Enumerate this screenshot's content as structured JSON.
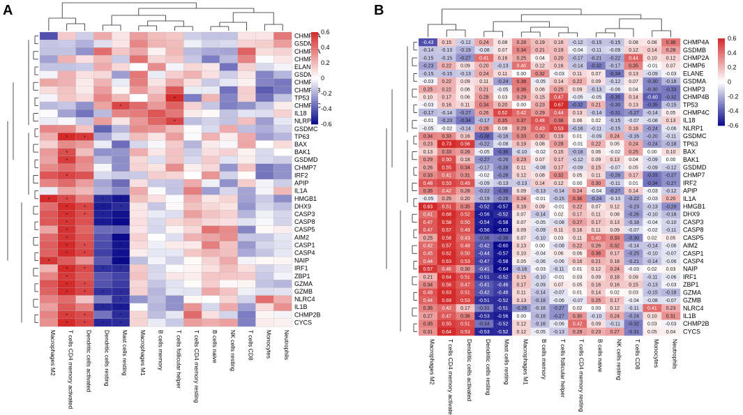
{
  "panels": [
    {
      "label": "A",
      "style": "stars"
    },
    {
      "label": "B",
      "style": "values"
    }
  ],
  "colorbar_ticks": [
    "0.6",
    "0.4",
    "0.2",
    "0",
    "-0.2",
    "-0.4",
    "-0.6"
  ],
  "colors": {
    "low": "#0a0a8c",
    "mid": "#ffffff",
    "high": "#d42a2a"
  },
  "chart_data": {
    "type": "heatmap",
    "title": "",
    "xlabel": "",
    "ylabel": "",
    "value_range": [
      -0.6,
      0.6
    ],
    "columns": [
      "Macrophages.M2",
      "T.cells.CD4.memory.activated",
      "Dendritic.cells.activated",
      "Dendritic.cells.resting",
      "Mast.cells.resting",
      "Macrophages.M1",
      "B.cells.memory",
      "T.cells.follicular.helper",
      "T.cells.CD4.memory.resting",
      "B.cells.naive",
      "NK.cells.resting",
      "T.cells.CD8",
      "Monocytes",
      "Neutrophils"
    ],
    "rows": [
      "CHMP4A",
      "GSDMB",
      "CHMP2A",
      "CHMP6",
      "ELANE",
      "GSDMA",
      "CHMP3",
      "CHMP4B",
      "TP53",
      "CHMP4C",
      "IL18",
      "NLRP1",
      "GSDMC",
      "TP63",
      "BAX",
      "BAK1",
      "GSDMD",
      "CHMP7",
      "IRF2",
      "APIP",
      "IL1A",
      "HMGB1",
      "DHX9",
      "CASP3",
      "CASP8",
      "CASP5",
      "AIM2",
      "CASP1",
      "CASP4",
      "NAIP",
      "IRF1",
      "ZBP1",
      "GZMA",
      "GZMB",
      "NLRC4",
      "IL1B",
      "CHMP2B",
      "CYCS"
    ],
    "values": [
      [
        -0.43,
        0.15,
        -0.12,
        0.24,
        0.08,
        0.28,
        0.19,
        0.16,
        -0.12,
        -0.15,
        -0.15,
        0.08,
        0.08,
        0.38
      ],
      [
        -0.14,
        -0.13,
        -0.19,
        -0.08,
        0.07,
        0.34,
        0.21,
        0.19,
        -0.04,
        -0.11,
        -0.09,
        0.12,
        0.14,
        0.28
      ],
      [
        -0.15,
        -0.15,
        -0.27,
        0.41,
        0.16,
        0.25,
        0.04,
        0.2,
        -0.17,
        -0.21,
        -0.22,
        0.44,
        0.1,
        0.12
      ],
      [
        -0.23,
        0.22,
        0.09,
        0.2,
        -0.13,
        0.4,
        0.12,
        0.16,
        -0.14,
        -0.32,
        -0.17,
        0.35,
        -0.01,
        0.07
      ],
      [
        -0.15,
        -0.15,
        -0.13,
        0.24,
        0.11,
        -0.0,
        0.32,
        -0.03,
        0.11,
        0.07,
        -0.34,
        0.13,
        -0.09,
        -0.03
      ],
      [
        -0.03,
        0.22,
        0.09,
        0.11,
        -0.24,
        0.38,
        -0.05,
        0.14,
        0.22,
        0.09,
        -0.12,
        0.07,
        -0.3,
        -0.18
      ],
      [
        0.25,
        0.22,
        0.06,
        0.21,
        -0.05,
        0.36,
        0.08,
        0.25,
        0.09,
        -0.13,
        -0.06,
        0.04,
        -0.3,
        -0.33
      ],
      [
        0.1,
        0.17,
        0.06,
        0.28,
        0.03,
        0.29,
        0.15,
        0.47,
        -0.05,
        -0.05,
        -0.35,
        0.14,
        -0.4,
        -0.32
      ],
      [
        -0.03,
        0.16,
        0.11,
        0.34,
        0.2,
        0.0,
        0.23,
        0.67,
        -0.32,
        0.21,
        -0.3,
        0.13,
        -0.35,
        -0.15
      ],
      [
        -0.17,
        -0.14,
        -0.27,
        0.26,
        0.52,
        0.42,
        0.29,
        0.44,
        0.13,
        -0.14,
        -0.31,
        -0.27,
        -0.14,
        0.05
      ],
      [
        -0.01,
        -0.23,
        -0.34,
        -0.17,
        0.35,
        0.37,
        0.48,
        0.38,
        0.06,
        0.02,
        -0.15,
        -0.07,
        -0.08,
        0.13
      ],
      [
        -0.05,
        -0.02,
        -0.14,
        0.28,
        0.08,
        0.29,
        0.43,
        0.53,
        -0.16,
        -0.11,
        -0.15,
        0.18,
        -0.24,
        -0.06
      ],
      [
        0.34,
        0.33,
        0.16,
        -0.38,
        -0.18,
        0.33,
        0.3,
        0.19,
        0.01,
        -0.09,
        0.24,
        -0.16,
        -0.2,
        -0.11
      ],
      [
        0.23,
        0.73,
        0.56,
        -0.22,
        -0.08,
        0.19,
        0.08,
        0.28,
        -0.01,
        0.22,
        0.05,
        0.24,
        -0.24,
        -0.18
      ],
      [
        0.13,
        0.33,
        0.28,
        -0.05,
        -0.36,
        -0.1,
        -0.02,
        0.15,
        -0.18,
        0.06,
        -0.02,
        0.25,
        0.0,
        0.1
      ],
      [
        0.29,
        0.5,
        0.18,
        -0.27,
        -0.26,
        0.23,
        0.07,
        0.17,
        -0.12,
        0.09,
        0.13,
        0.04,
        -0.09,
        -0.0
      ],
      [
        0.26,
        0.55,
        0.34,
        -0.17,
        -0.28,
        0.11,
        -0.08,
        0.17,
        -0.09,
        0.15,
        -0.07,
        0.05,
        -0.09,
        -0.12
      ],
      [
        0.33,
        0.41,
        0.31,
        -0.02,
        -0.28,
        0.12,
        0.08,
        0.32,
        0.05,
        0.11,
        -0.26,
        0.17,
        -0.33,
        -0.27
      ],
      [
        0.48,
        0.53,
        0.49,
        -0.09,
        -0.13,
        -0.13,
        0.14,
        0.12,
        -0.0,
        0.3,
        -0.11,
        0.01,
        -0.34,
        -0.27
      ],
      [
        0.35,
        0.42,
        0.28,
        -0.22,
        -0.36,
        0.09,
        -0.13,
        -0.14,
        0.24,
        -0.04,
        -0.27,
        0.14,
        -0.03,
        -0.12
      ],
      [
        -0.05,
        0.25,
        0.2,
        -0.19,
        -0.28,
        0.24,
        -0.01,
        -0.15,
        0.36,
        -0.24,
        -0.1,
        -0.22,
        -0.03,
        0.2
      ],
      [
        0.63,
        0.51,
        0.35,
        -0.52,
        -0.57,
        0.18,
        0.09,
        -0.01,
        0.22,
        0.07,
        0.12,
        -0.23,
        -0.13,
        -0.28
      ],
      [
        0.41,
        0.68,
        0.52,
        -0.56,
        -0.52,
        0.07,
        -0.14,
        0.02,
        0.17,
        0.11,
        0.08,
        -0.26,
        -0.1,
        -0.16
      ],
      [
        0.47,
        0.58,
        0.5,
        -0.54,
        -0.58,
        0.07,
        -0.05,
        -0.08,
        0.27,
        0.17,
        0.13,
        -0.18,
        -0.04,
        -0.1
      ],
      [
        0.47,
        0.57,
        0.49,
        -0.56,
        -0.63,
        0.09,
        -0.09,
        0.11,
        0.16,
        0.11,
        0.09,
        -0.07,
        -0.02,
        -0.11
      ],
      [
        0.25,
        0.58,
        0.43,
        -0.36,
        -0.38,
        0.07,
        -0.1,
        0.03,
        0.11,
        0.4,
        0.33,
        -0.3,
        0.02,
        0.05
      ],
      [
        0.42,
        0.57,
        0.48,
        -0.42,
        -0.6,
        0.13,
        -0.0,
        -0.08,
        0.22,
        0.26,
        0.32,
        -0.14,
        -0.14,
        -0.06
      ],
      [
        0.45,
        0.62,
        0.5,
        -0.44,
        -0.57,
        0.1,
        -0.04,
        0.06,
        0.06,
        0.36,
        0.17,
        -0.25,
        -0.1,
        -0.07
      ],
      [
        0.44,
        0.63,
        0.53,
        -0.47,
        -0.58,
        0.05,
        -0.06,
        -0.06,
        0.16,
        0.21,
        0.18,
        -0.21,
        -0.14,
        -0.06
      ],
      [
        0.57,
        0.46,
        0.3,
        -0.41,
        -0.64,
        -0.16,
        -0.03,
        -0.11,
        0.01,
        0.12,
        0.24,
        -0.03,
        0.02,
        0.03
      ],
      [
        0.21,
        0.64,
        0.51,
        -0.51,
        -0.52,
        0.15,
        -0.1,
        -0.01,
        0.03,
        0.09,
        0.18,
        0.09,
        -0.11,
        -0.06
      ],
      [
        0.34,
        0.56,
        0.47,
        -0.41,
        -0.46,
        0.17,
        -0.09,
        0.07,
        0.05,
        0.16,
        0.16,
        0.15,
        -0.13,
        -0.03
      ],
      [
        0.48,
        0.63,
        0.51,
        -0.42,
        -0.48,
        0.11,
        -0.14,
        -0.07,
        0.01,
        0.14,
        0.02,
        0.03,
        -0.15,
        -0.18
      ],
      [
        0.44,
        0.69,
        0.53,
        -0.51,
        -0.52,
        0.13,
        -0.18,
        -0.06,
        -0.07,
        0.25,
        0.17,
        -0.04,
        -0.08,
        -0.07
      ],
      [
        0.35,
        0.42,
        0.17,
        -0.31,
        -0.51,
        -0.26,
        -0.16,
        -0.27,
        0.02,
        -0.0,
        0.12,
        -0.11,
        0.41,
        0.23
      ],
      [
        0.27,
        0.47,
        0.36,
        -0.53,
        -0.56,
        0.0,
        -0.18,
        -0.27,
        0.3,
        -0.1,
        0.24,
        -0.24,
        0.1,
        0.31
      ],
      [
        0.35,
        0.55,
        0.51,
        -0.34,
        -0.52,
        0.12,
        -0.16,
        -0.06,
        0.42,
        0.09,
        -0.11,
        -0.32,
        0.03,
        -0.03
      ],
      [
        0.31,
        0.64,
        0.53,
        -0.53,
        -0.52,
        0.12,
        -0.05,
        -0.13,
        0.28,
        0.23,
        0.27,
        -0.31,
        0.05,
        0.04
      ]
    ]
  }
}
